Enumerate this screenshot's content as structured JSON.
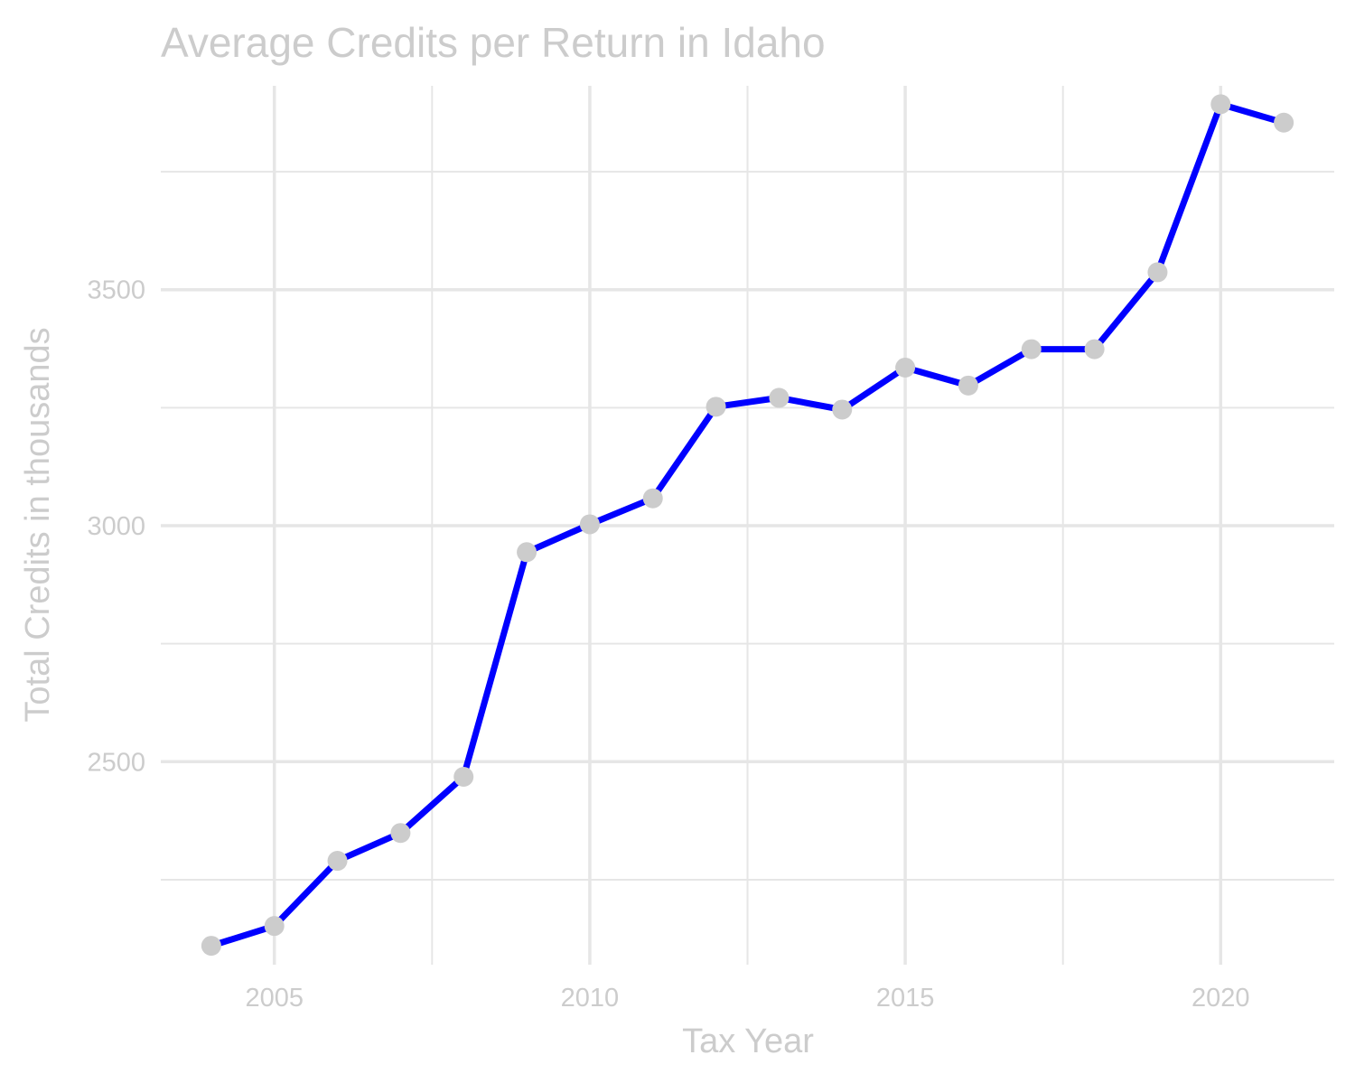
{
  "chart_data": {
    "type": "line",
    "title": "Average Credits per Return in Idaho",
    "xlabel": "Tax Year",
    "ylabel": "Total Credits in thousands",
    "x": [
      2004,
      2005,
      2006,
      2007,
      2008,
      2009,
      2010,
      2011,
      2012,
      2013,
      2014,
      2015,
      2016,
      2017,
      2018,
      2019,
      2020,
      2021
    ],
    "series": [
      {
        "values": [
          2110,
          2152,
          2290,
          2349,
          2468,
          2944,
          3003,
          3058,
          3252,
          3271,
          3246,
          3335,
          3297,
          3374,
          3374,
          3537,
          3893,
          3854
        ]
      }
    ],
    "xticks": [
      2005,
      2010,
      2015,
      2020
    ],
    "yticks": [
      2500,
      3000,
      3500
    ],
    "xlim": [
      2003.2,
      2021.8
    ],
    "ylim": [
      2070,
      3932
    ],
    "grid": true,
    "legend": "none",
    "colors": {
      "line": "#0000ff",
      "point": "#cccccc",
      "grid": "#e6e6e6",
      "text": "#cccccc"
    }
  }
}
